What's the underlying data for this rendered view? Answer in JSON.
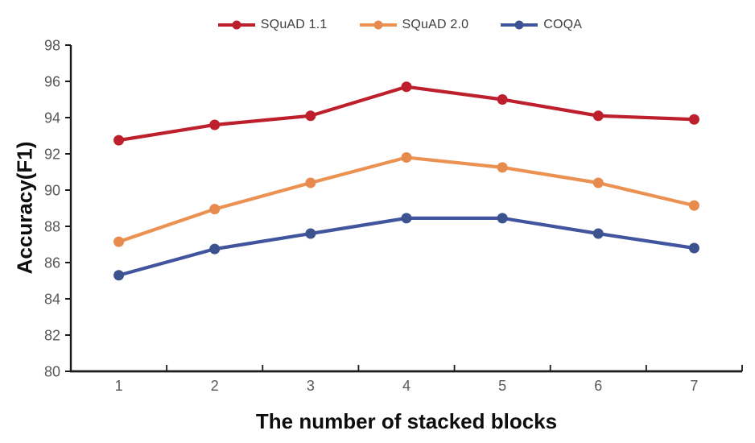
{
  "chart_data": {
    "type": "line",
    "title": "",
    "xlabel": "The number of stacked blocks",
    "ylabel": "Accuracy(F1)",
    "categories": [
      "1",
      "2",
      "3",
      "4",
      "5",
      "6",
      "7"
    ],
    "series": [
      {
        "name": "SQuAD 1.1",
        "color": "#BD1F2C",
        "marker_color": "#BD1F2C",
        "values": [
          92.75,
          93.6,
          94.1,
          95.7,
          95.0,
          94.1,
          93.9
        ]
      },
      {
        "name": "SQuAD 2.0",
        "color": "#EB9152",
        "marker_color": "#E68A4E",
        "values": [
          87.15,
          88.95,
          90.4,
          91.8,
          91.25,
          90.4,
          89.15
        ]
      },
      {
        "name": "COQA",
        "color": "#41549E",
        "marker_color": "#3D5390",
        "values": [
          85.3,
          86.75,
          87.6,
          88.45,
          88.45,
          87.6,
          86.8
        ]
      }
    ],
    "ylim": [
      80,
      98
    ],
    "ytick_step": 2,
    "grid": false,
    "legend_position": "top",
    "axis_color": "#1a1a1a",
    "tick_label_color": "#595959"
  }
}
